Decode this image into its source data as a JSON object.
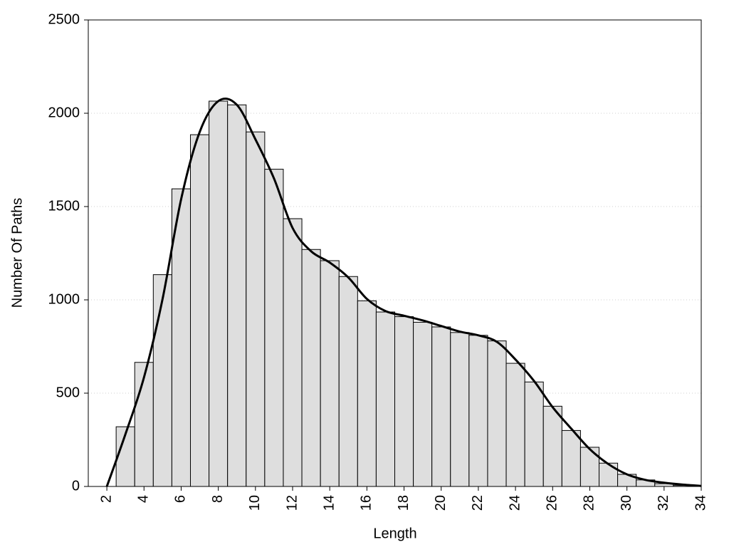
{
  "chart_data": {
    "type": "histogram",
    "xlabel": "Length",
    "ylabel": "Number Of Paths",
    "bins": [
      2.5,
      3.5,
      4.5,
      5.5,
      6.5,
      7.5,
      8.5,
      9.5,
      10.5,
      11.5,
      12.5,
      13.5,
      14.5,
      15.5,
      16.5,
      17.5,
      18.5,
      19.5,
      20.5,
      21.5,
      22.5,
      23.5,
      24.5,
      25.5,
      26.5,
      27.5,
      28.5,
      29.5,
      30.5,
      31.5,
      32.5,
      33.5
    ],
    "values": [
      320,
      665,
      1135,
      1595,
      1885,
      2065,
      2045,
      1900,
      1700,
      1435,
      1270,
      1210,
      1125,
      995,
      935,
      910,
      880,
      855,
      825,
      810,
      780,
      660,
      560,
      430,
      300,
      210,
      125,
      65,
      35,
      15,
      5
    ],
    "color": "#dedede",
    "curve": {
      "type": "line",
      "color": "#000000",
      "x": [
        2,
        3,
        4,
        5,
        6,
        7,
        8,
        9,
        10,
        11,
        12,
        13,
        14,
        15,
        16,
        17,
        18,
        19,
        20,
        21,
        22,
        23,
        24,
        25,
        26,
        27,
        28,
        29,
        30,
        31,
        32,
        33,
        34
      ],
      "values": [
        0,
        280,
        585,
        1005,
        1540,
        1900,
        2065,
        2045,
        1860,
        1650,
        1385,
        1260,
        1200,
        1120,
        1005,
        940,
        915,
        890,
        860,
        830,
        810,
        775,
        680,
        565,
        425,
        310,
        200,
        120,
        65,
        35,
        20,
        10,
        3
      ]
    },
    "xlim": [
      1,
      34
    ],
    "ylim": [
      0,
      2500
    ],
    "xticks": [
      2,
      4,
      6,
      8,
      10,
      12,
      14,
      16,
      18,
      20,
      22,
      24,
      26,
      28,
      30,
      32,
      34
    ],
    "yticks": [
      0,
      500,
      1000,
      1500,
      2000,
      2500
    ],
    "grid": true
  }
}
